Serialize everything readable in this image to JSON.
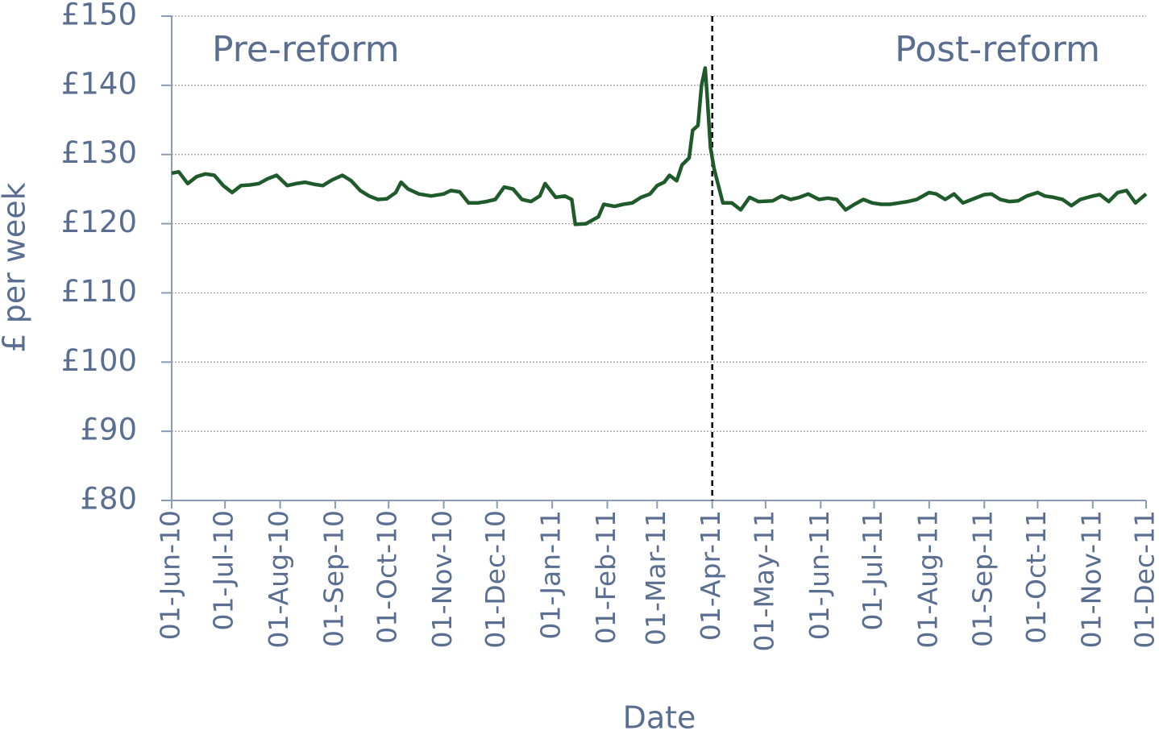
{
  "chart_data": {
    "type": "line",
    "xlabel": "Date",
    "ylabel": "£ per week",
    "annotations": [
      "Pre-reform",
      "Post-reform"
    ],
    "vline": "2011-04-01",
    "grid": true,
    "x": [
      "2010-06-01",
      "2010-06-05",
      "2010-06-10",
      "2010-06-15",
      "2010-06-20",
      "2010-06-25",
      "2010-06-30",
      "2010-07-05",
      "2010-07-10",
      "2010-07-15",
      "2010-07-20",
      "2010-07-25",
      "2010-07-30",
      "2010-08-05",
      "2010-08-10",
      "2010-08-15",
      "2010-08-20",
      "2010-08-25",
      "2010-08-30",
      "2010-09-05",
      "2010-09-10",
      "2010-09-15",
      "2010-09-20",
      "2010-09-25",
      "2010-09-30",
      "2010-10-05",
      "2010-10-08",
      "2010-10-12",
      "2010-10-18",
      "2010-10-25",
      "2010-11-01",
      "2010-11-05",
      "2010-11-10",
      "2010-11-15",
      "2010-11-20",
      "2010-11-25",
      "2010-11-30",
      "2010-12-05",
      "2010-12-10",
      "2010-12-15",
      "2010-12-20",
      "2010-12-25",
      "2010-12-28",
      "2011-01-03",
      "2011-01-08",
      "2011-01-12",
      "2011-01-14",
      "2011-01-20",
      "2011-01-27",
      "2011-01-30",
      "2011-02-05",
      "2011-02-10",
      "2011-02-15",
      "2011-02-20",
      "2011-02-25",
      "2011-03-01",
      "2011-03-05",
      "2011-03-08",
      "2011-03-12",
      "2011-03-15",
      "2011-03-19",
      "2011-03-21",
      "2011-03-24",
      "2011-03-26",
      "2011-03-28",
      "2011-03-29",
      "2011-03-31",
      "2011-04-02",
      "2011-04-04",
      "2011-04-07",
      "2011-04-12",
      "2011-04-17",
      "2011-04-22",
      "2011-04-27",
      "2011-05-05",
      "2011-05-10",
      "2011-05-15",
      "2011-05-20",
      "2011-05-25",
      "2011-05-31",
      "2011-06-05",
      "2011-06-10",
      "2011-06-15",
      "2011-06-20",
      "2011-06-25",
      "2011-06-30",
      "2011-07-05",
      "2011-07-10",
      "2011-07-15",
      "2011-07-20",
      "2011-07-25",
      "2011-08-01",
      "2011-08-05",
      "2011-08-10",
      "2011-08-15",
      "2011-08-20",
      "2011-08-25",
      "2011-09-01",
      "2011-09-05",
      "2011-09-10",
      "2011-09-15",
      "2011-09-20",
      "2011-09-25",
      "2011-10-01",
      "2011-10-05",
      "2011-10-10",
      "2011-10-15",
      "2011-10-20",
      "2011-10-25",
      "2011-11-01",
      "2011-11-05",
      "2011-11-10",
      "2011-11-15",
      "2011-11-20",
      "2011-11-25",
      "2011-12-01"
    ],
    "series": [
      {
        "name": "£ per week",
        "color": "#1f5a2b",
        "values": [
          127.3,
          127.5,
          125.8,
          126.8,
          127.2,
          127,
          125.5,
          124.5,
          125.5,
          125.6,
          125.8,
          126.5,
          127,
          125.5,
          125.8,
          126,
          125.7,
          125.5,
          126.3,
          127,
          126.2,
          124.8,
          124,
          123.5,
          123.6,
          124.5,
          126,
          125,
          124.3,
          124,
          124.3,
          124.8,
          124.6,
          123,
          123,
          123.2,
          123.5,
          125.3,
          125,
          123.5,
          123.2,
          124,
          125.8,
          123.8,
          124,
          123.5,
          119.9,
          120,
          121,
          122.8,
          122.5,
          122.8,
          123,
          123.8,
          124.3,
          125.5,
          126,
          127,
          126.2,
          128.5,
          129.5,
          133.5,
          134.2,
          140,
          142.5,
          139,
          131,
          128,
          126,
          123,
          123,
          122,
          123.8,
          123.2,
          123.3,
          124,
          123.5,
          123.8,
          124.3,
          123.5,
          123.7,
          123.5,
          122,
          122.8,
          123.5,
          123,
          122.8,
          122.8,
          123,
          123.2,
          123.5,
          124.5,
          124.3,
          123.5,
          124.3,
          123,
          123.5,
          124.2,
          124.3,
          123.5,
          123.2,
          123.3,
          124,
          124.5,
          124,
          123.8,
          123.5,
          122.6,
          123.5,
          124,
          124.2,
          123.2,
          124.5,
          124.8,
          123,
          124.3
        ]
      }
    ],
    "xlim": [
      "2010-06-01",
      "2011-12-01"
    ],
    "xticks": [
      {
        "value": "2010-06-01",
        "label": "01-Jun-10"
      },
      {
        "value": "2010-07-01",
        "label": "01-Jul-10"
      },
      {
        "value": "2010-08-01",
        "label": "01-Aug-10"
      },
      {
        "value": "2010-09-01",
        "label": "01-Sep-10"
      },
      {
        "value": "2010-10-01",
        "label": "01-Oct-10"
      },
      {
        "value": "2010-11-01",
        "label": "01-Nov-10"
      },
      {
        "value": "2010-12-01",
        "label": "01-Dec-10"
      },
      {
        "value": "2011-01-01",
        "label": "01-Jan-11"
      },
      {
        "value": "2011-02-01",
        "label": "01-Feb-11"
      },
      {
        "value": "2011-03-01",
        "label": "01-Mar-11"
      },
      {
        "value": "2011-04-01",
        "label": "01-Apr-11"
      },
      {
        "value": "2011-05-01",
        "label": "01-May-11"
      },
      {
        "value": "2011-06-01",
        "label": "01-Jun-11"
      },
      {
        "value": "2011-07-01",
        "label": "01-Jul-11"
      },
      {
        "value": "2011-08-01",
        "label": "01-Aug-11"
      },
      {
        "value": "2011-09-01",
        "label": "01-Sep-11"
      },
      {
        "value": "2011-10-01",
        "label": "01-Oct-11"
      },
      {
        "value": "2011-11-01",
        "label": "01-Nov-11"
      },
      {
        "value": "2011-12-01",
        "label": "01-Dec-11"
      }
    ],
    "ylim": [
      80,
      150
    ],
    "yticks": [
      {
        "value": 80,
        "label": "£80"
      },
      {
        "value": 90,
        "label": "£90"
      },
      {
        "value": 100,
        "label": "£100"
      },
      {
        "value": 110,
        "label": "£110"
      },
      {
        "value": 120,
        "label": "£120"
      },
      {
        "value": 130,
        "label": "£130"
      },
      {
        "value": 140,
        "label": "£140"
      },
      {
        "value": 150,
        "label": "£150"
      }
    ]
  }
}
